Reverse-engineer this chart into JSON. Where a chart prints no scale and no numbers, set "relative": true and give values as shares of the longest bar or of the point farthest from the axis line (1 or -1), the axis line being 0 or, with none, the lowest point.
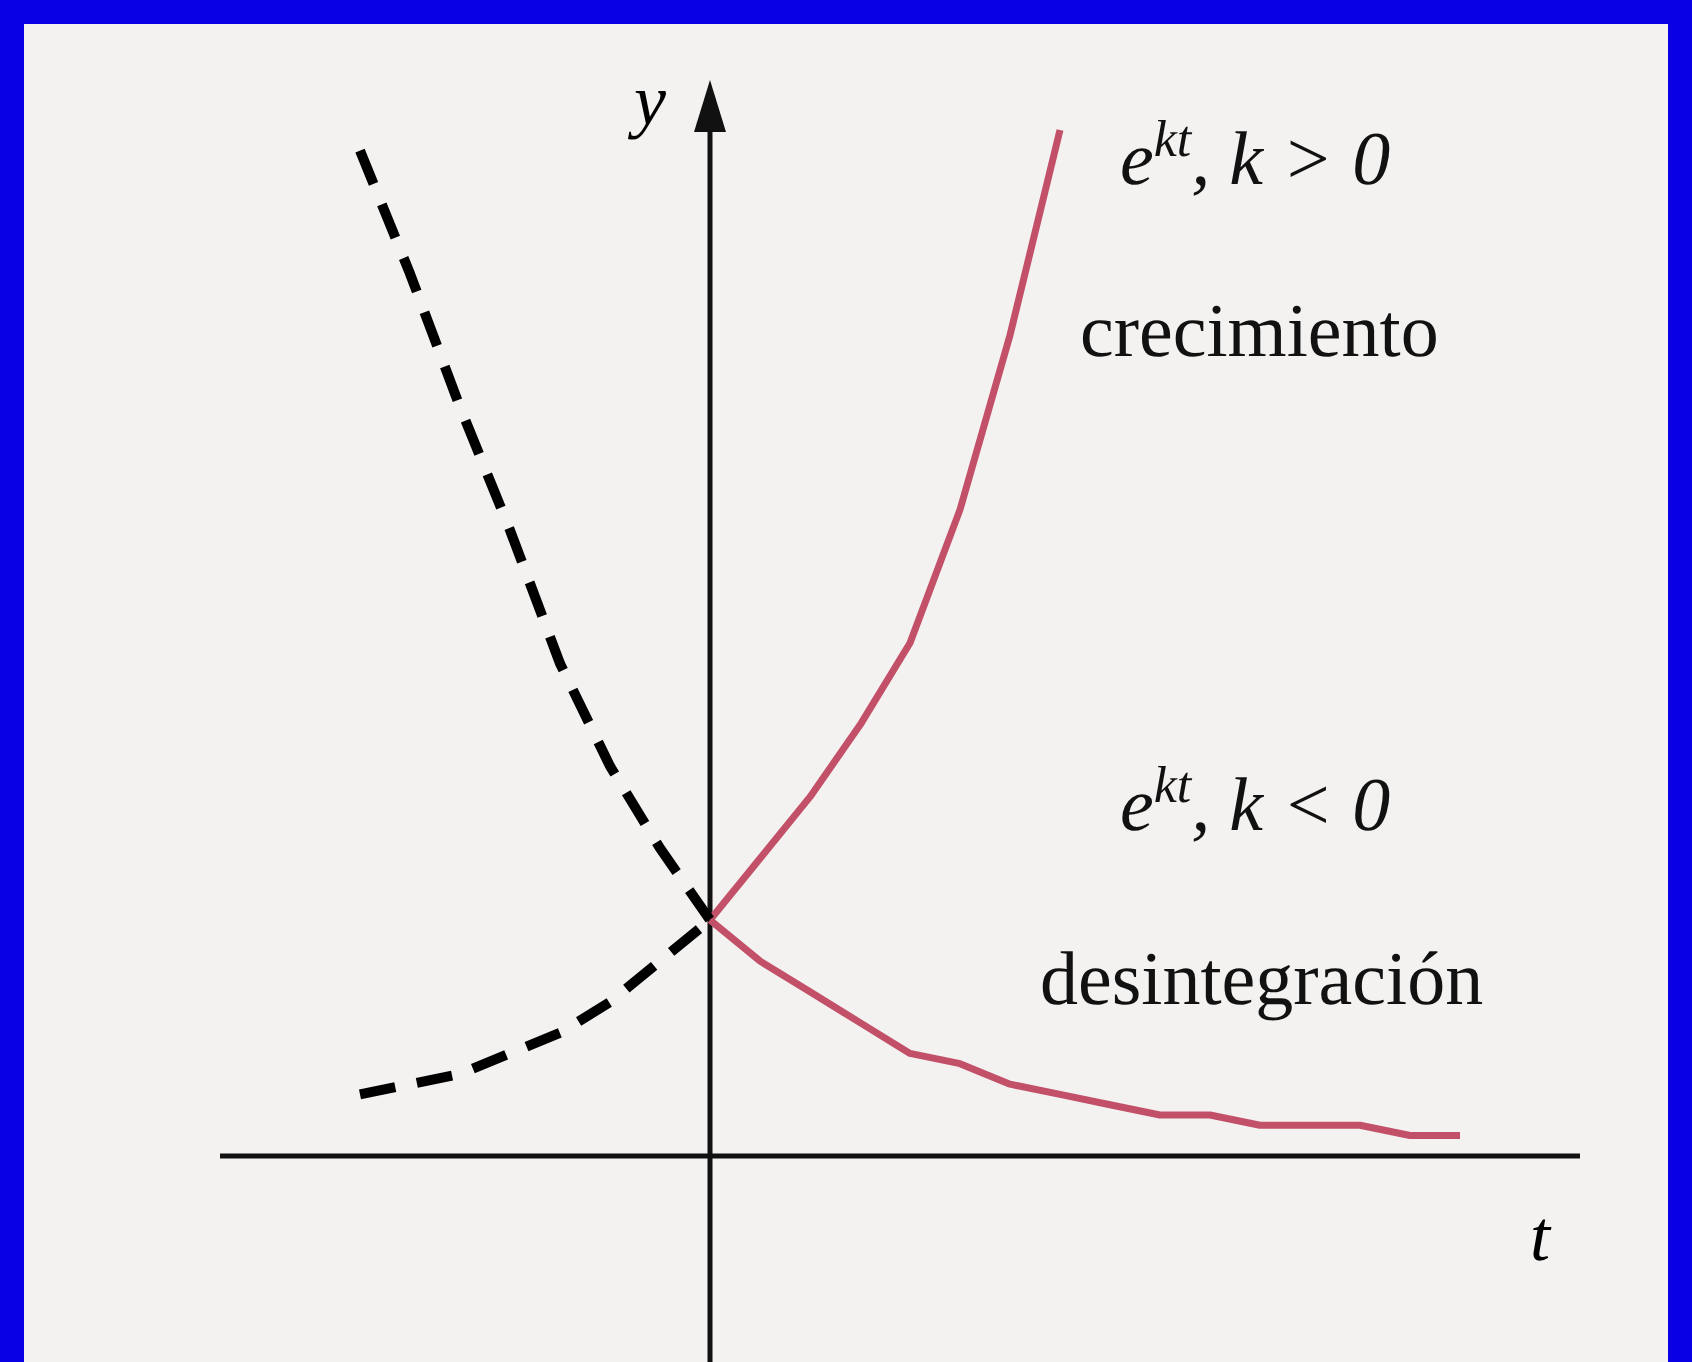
{
  "chart_data": {
    "type": "line",
    "relative": true,
    "xlabel": "t",
    "ylabel": "y",
    "categories": [
      null,
      null,
      null,
      null,
      null,
      null,
      null,
      null,
      null,
      null,
      null,
      null,
      null,
      null,
      null,
      null,
      null,
      null,
      null,
      null,
      null,
      null,
      null
    ],
    "series": [
      {
        "color": "#c25068",
        "line_style": "solid",
        "values": [
          null,
          null,
          null,
          null,
          null,
          null,
          null,
          0.23,
          0.29,
          0.35,
          0.42,
          0.5,
          0.63,
          0.8,
          1,
          null,
          null,
          null,
          null,
          null,
          null,
          null,
          null
        ]
      },
      {
        "color": "#000000",
        "line_style": "dashed",
        "values": [
          0.06,
          0.07,
          0.08,
          0.1,
          0.12,
          0.15,
          0.19,
          0.23,
          null,
          null,
          null,
          null,
          null,
          null,
          null,
          null,
          null,
          null,
          null,
          null,
          null,
          null,
          null
        ]
      },
      {
        "color": "#c25068",
        "line_style": "solid",
        "values": [
          null,
          null,
          null,
          null,
          null,
          null,
          null,
          0.23,
          0.19,
          0.16,
          0.13,
          0.1,
          0.09,
          0.07,
          0.06,
          0.05,
          0.04,
          0.04,
          0.03,
          0.03,
          0.03,
          0.02,
          0.02
        ]
      },
      {
        "color": "#000000",
        "line_style": "dashed",
        "values": [
          0.98,
          0.86,
          0.73,
          0.61,
          0.48,
          0.38,
          0.3,
          0.23,
          null,
          null,
          null,
          null,
          null,
          null,
          null,
          null,
          null,
          null,
          null,
          null,
          null,
          null,
          null
        ]
      }
    ],
    "annotations": [
      "e$^{kt}$, k > 0",
      "crecimiento",
      "e$^{kt}$, k < 0",
      "desintegración"
    ]
  }
}
